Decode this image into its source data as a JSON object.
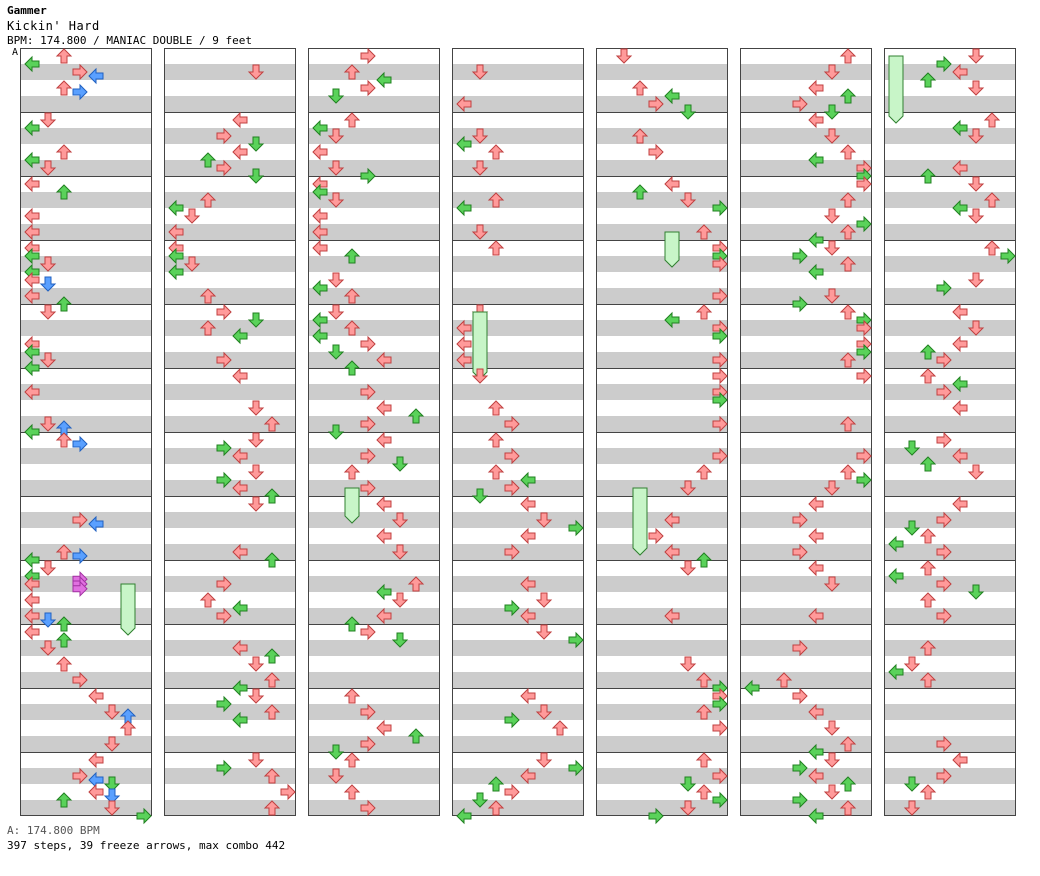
{
  "header": {
    "artist": "Gammer",
    "title": "Kickin' Hard",
    "info": "BPM: 174.800 / MANIAC DOUBLE / 9 feet",
    "bpm_marker": "A"
  },
  "footer": {
    "bpm_line": "A: 174.800 BPM",
    "stats": "397 steps, 39 freeze arrows, max combo 442"
  },
  "colors": {
    "quarter": "#ff9a9a",
    "eighth": "#5ad25a",
    "sixteenth": "#5aa0ff",
    "twelfth": "#e070e0",
    "freeze": "#c8f5c8",
    "band": "#cccccc"
  },
  "chart": {
    "type": "step-chart",
    "style": "doubles",
    "lanes": 8,
    "columns": 7,
    "measures_per_column": 12
  }
}
